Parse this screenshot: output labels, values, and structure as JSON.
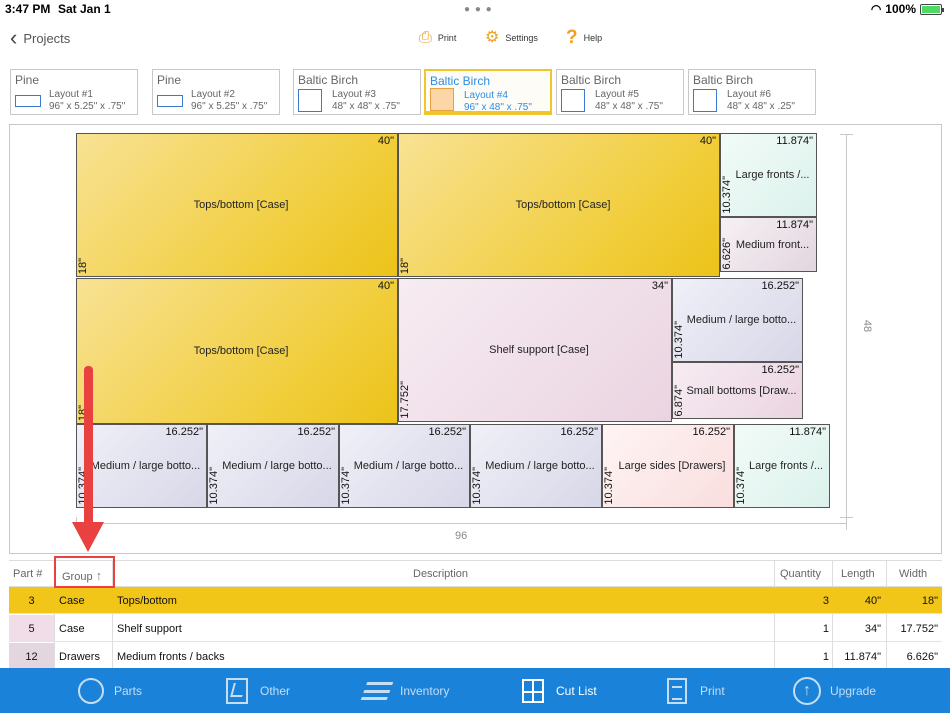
{
  "status": {
    "time": "3:47 PM",
    "date": "Sat Jan 1",
    "battery": "100%",
    "battery_level": 1.0
  },
  "nav": {
    "back_label": "Projects",
    "print_label": "Print",
    "settings_label": "Settings",
    "help_label": "Help"
  },
  "layouts": [
    {
      "material": "Pine",
      "name": "Layout #1",
      "dims": "96\" x 5.25\" x .75\"",
      "active": false
    },
    {
      "material": "Pine",
      "name": "Layout #2",
      "dims": "96\" x 5.25\" x .75\"",
      "active": false
    },
    {
      "material": "Baltic Birch",
      "name": "Layout #3",
      "dims": "48\" x 48\" x .75\"",
      "active": false
    },
    {
      "material": "Baltic Birch",
      "name": "Layout #4",
      "dims": "96\" x 48\" x .75\"",
      "active": true
    },
    {
      "material": "Baltic Birch",
      "name": "Layout #5",
      "dims": "48\" x 48\" x .75\"",
      "active": false
    },
    {
      "material": "Baltic Birch",
      "name": "Layout #6",
      "dims": "48\" x 48\" x .25\"",
      "active": false
    }
  ],
  "board": {
    "width_label": "96",
    "height_label": "48",
    "pieces": [
      {
        "label": "Tops/bottom [Case]",
        "w": "40\"",
        "h": "18\"",
        "color": "case"
      },
      {
        "label": "Tops/bottom [Case]",
        "w": "40\"",
        "h": "18\"",
        "color": "case"
      },
      {
        "label": "Large fronts /...",
        "w": "11.874\"",
        "h": "10.374\"",
        "color": "mint"
      },
      {
        "label": "Medium front...",
        "w": "11.874\"",
        "h": "6.626\"",
        "color": "mauve"
      },
      {
        "label": "Tops/bottom [Case]",
        "w": "40\"",
        "h": "18\"",
        "color": "case"
      },
      {
        "label": "Shelf support [Case]",
        "w": "34\"",
        "h": "17.752\"",
        "color": "pink"
      },
      {
        "label": "Medium / large botto...",
        "w": "16.252\"",
        "h": "10.374\"",
        "color": "lav"
      },
      {
        "label": "Small bottoms [Draw...",
        "w": "16.252\"",
        "h": "6.874\"",
        "color": "pink"
      },
      {
        "label": "Medium / large botto...",
        "w": "16.252\"",
        "h": "10.374\"",
        "color": "lav"
      },
      {
        "label": "Medium / large botto...",
        "w": "16.252\"",
        "h": "10.374\"",
        "color": "lav"
      },
      {
        "label": "Medium / large botto...",
        "w": "16.252\"",
        "h": "10.374\"",
        "color": "lav"
      },
      {
        "label": "Medium / large botto...",
        "w": "16.252\"",
        "h": "10.374\"",
        "color": "lav"
      },
      {
        "label": "Large sides [Drawers]",
        "w": "16.252\"",
        "h": "10.374\"",
        "color": "rose"
      },
      {
        "label": "Large fronts /...",
        "w": "11.874\"",
        "h": "10.374\"",
        "color": "mint"
      }
    ]
  },
  "table": {
    "headers": {
      "part": "Part #",
      "group": "Group",
      "description": "Description",
      "quantity": "Quantity",
      "length": "Length",
      "width": "Width"
    },
    "rows": [
      {
        "part": "3",
        "group": "Case",
        "description": "Tops/bottom",
        "quantity": "3",
        "length": "40\"",
        "width": "18\"",
        "selected": true,
        "tint": "#f2c618"
      },
      {
        "part": "5",
        "group": "Case",
        "description": "Shelf support",
        "quantity": "1",
        "length": "34\"",
        "width": "17.752\"",
        "selected": false,
        "tint": "#f1dde8"
      },
      {
        "part": "12",
        "group": "Drawers",
        "description": "Medium fronts / backs",
        "quantity": "1",
        "length": "11.874\"",
        "width": "6.626\"",
        "selected": false,
        "tint": "#e3d6df"
      }
    ]
  },
  "toolbar": {
    "parts": "Parts",
    "other": "Other",
    "inventory": "Inventory",
    "cutlist": "Cut List",
    "print": "Print",
    "upgrade": "Upgrade"
  },
  "colors": {
    "accent": "#1a83d9",
    "selected": "#f2c618",
    "annotation": "#e8413f",
    "tab_active": "#2d8ee6"
  }
}
